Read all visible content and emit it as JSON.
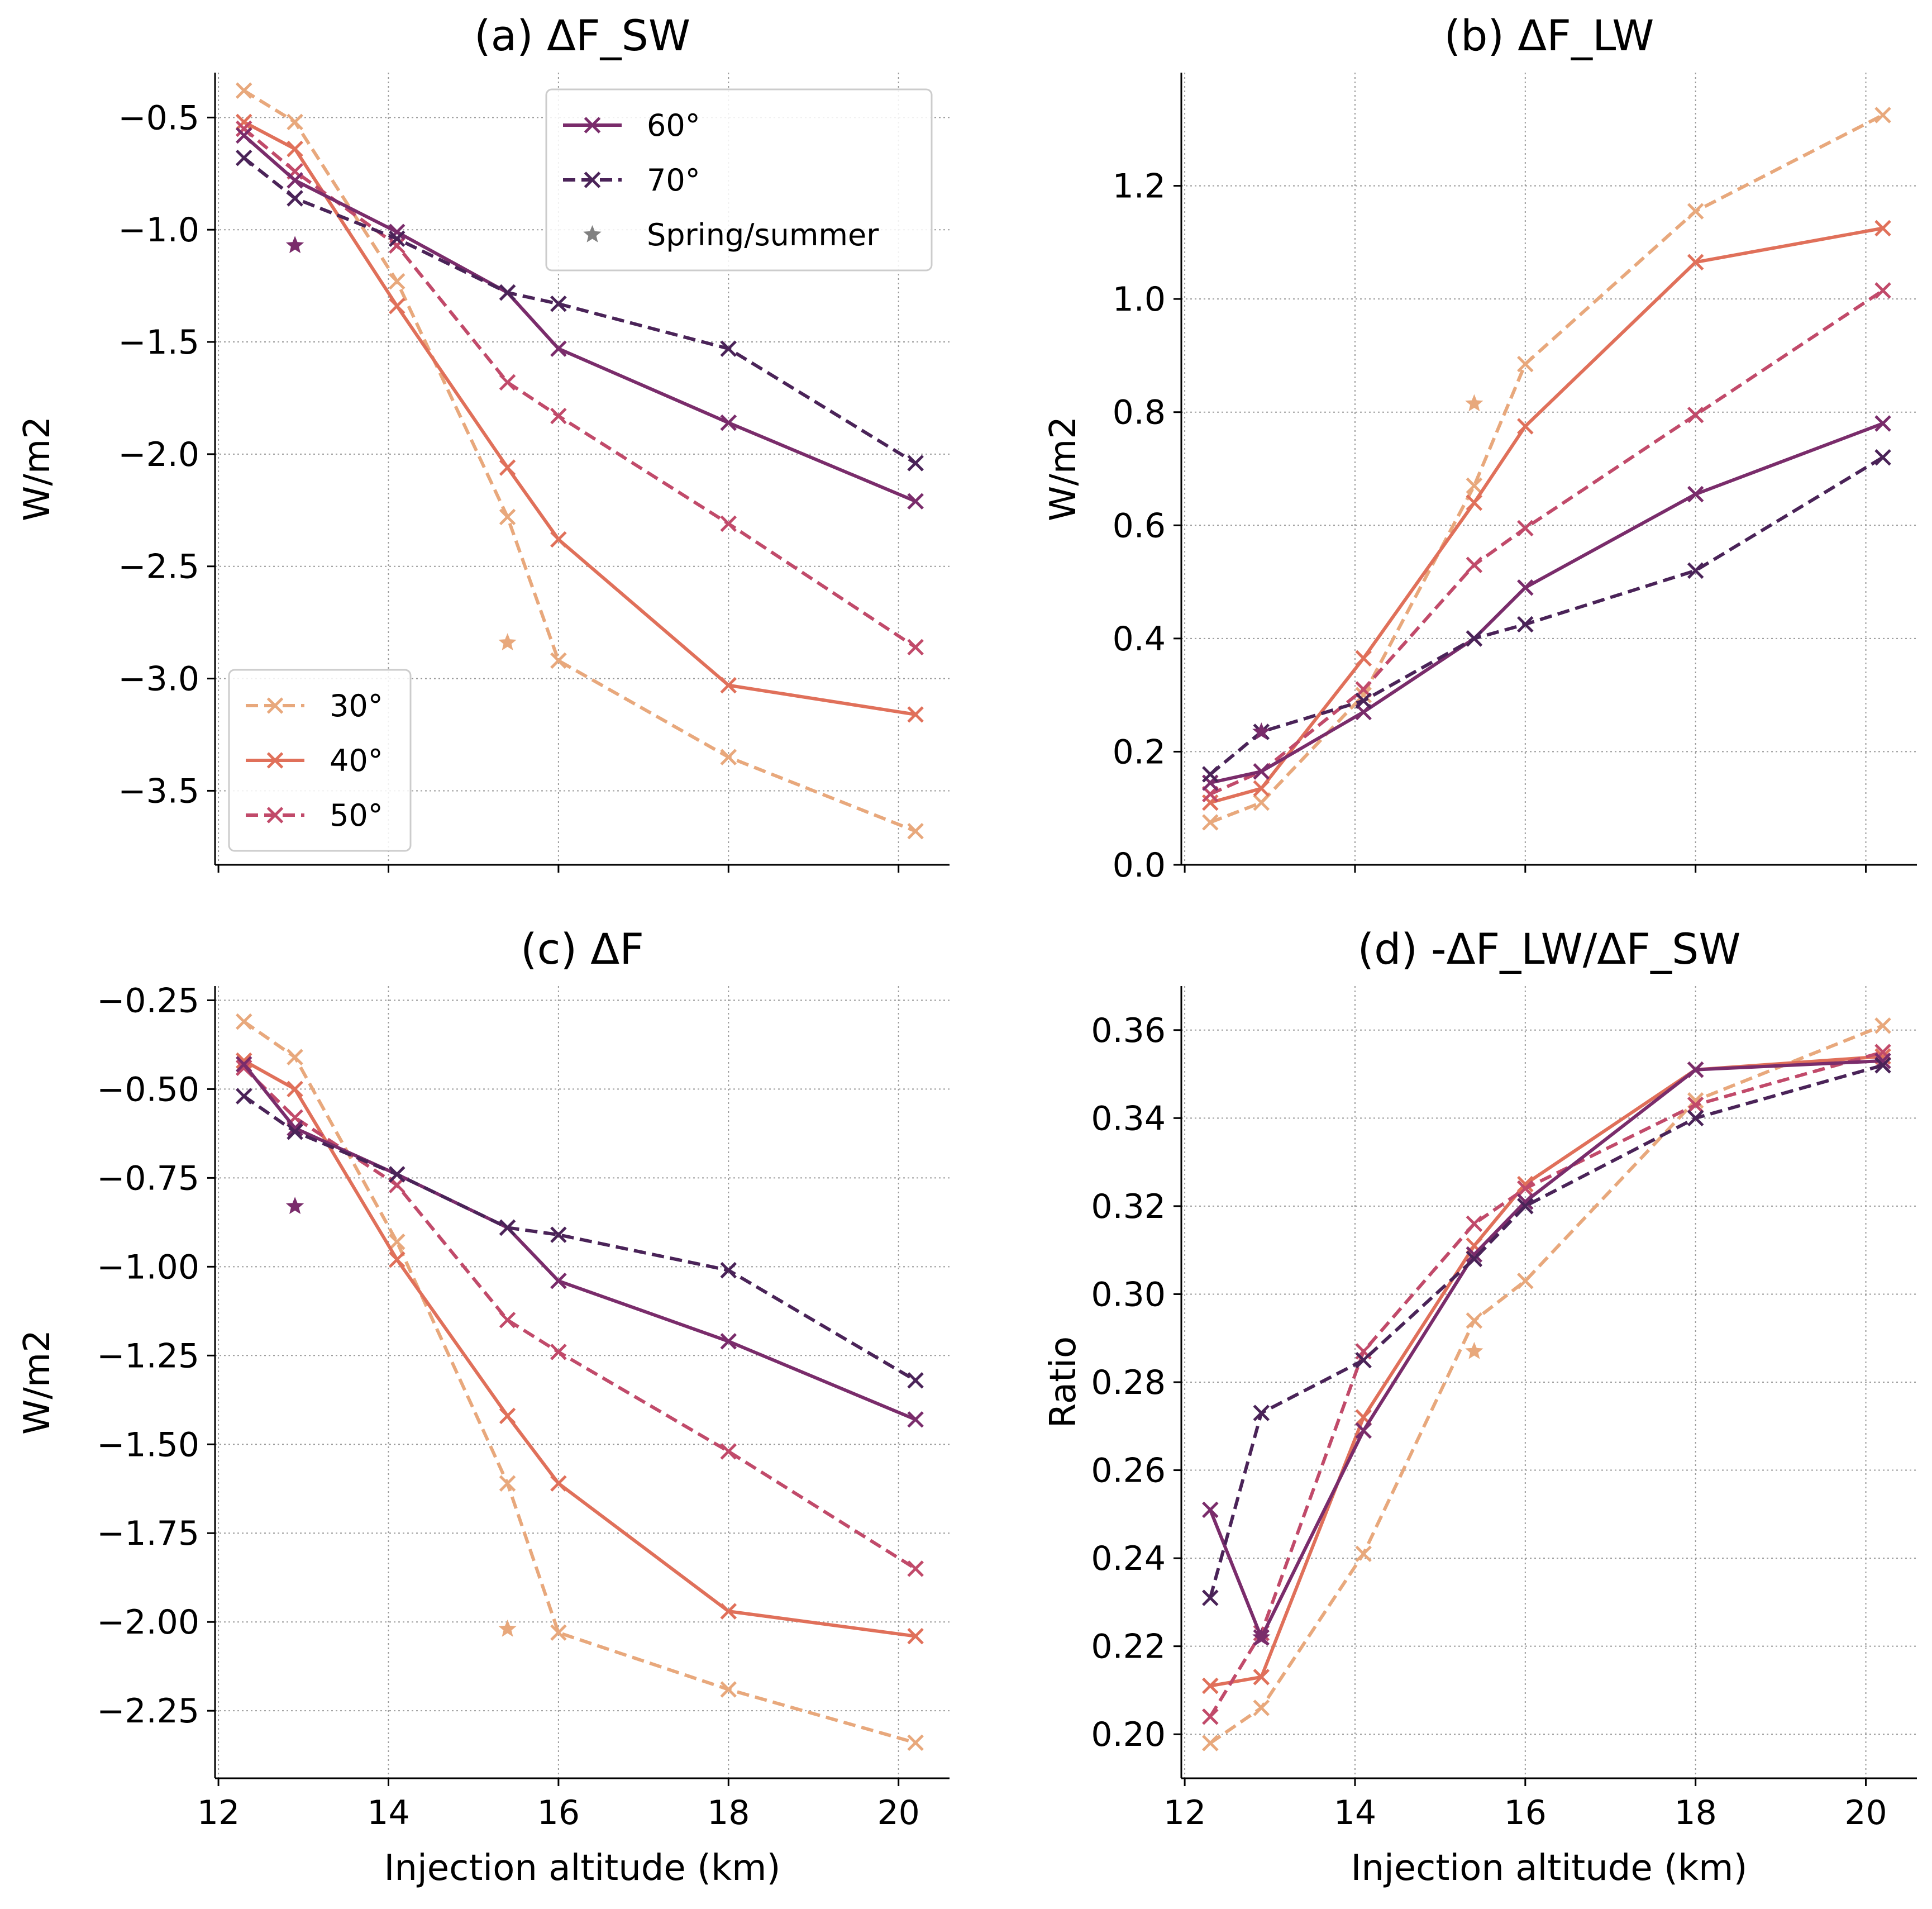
{
  "figure": {
    "title": ""
  },
  "colors": {
    "30": "#E8A87C",
    "40": "#E0705A",
    "50": "#C14A6A",
    "60": "#7A2C6B",
    "70": "#4A2358",
    "star_legend": "#808080"
  },
  "legend_labels": {
    "s30": "30°",
    "s40": "40°",
    "s50": "50°",
    "s60": "60°",
    "s70": "70°",
    "star": "Spring/summer"
  },
  "chart_data": [
    {
      "id": "a",
      "type": "line",
      "title": "(a) ΔF_SW",
      "xlabel": "",
      "ylabel": "W/m2",
      "xlim": [
        11.96,
        20.6
      ],
      "ylim": [
        -3.83,
        -0.3
      ],
      "xticks": [
        12,
        14,
        16,
        18,
        20
      ],
      "yticks": [
        -0.5,
        -1.0,
        -1.5,
        -2.0,
        -2.5,
        -3.0,
        -3.5
      ],
      "xtick_labels": [
        "",
        "",
        "",
        "",
        ""
      ],
      "ytick_labels": [
        "−0.5",
        "−1.0",
        "−1.5",
        "−2.0",
        "−2.5",
        "−3.0",
        "−3.5"
      ],
      "x": [
        12.3,
        12.9,
        14.1,
        15.4,
        16.0,
        18.0,
        20.2
      ],
      "series": [
        {
          "name": "30°",
          "key": "30",
          "dash": true,
          "values": [
            -0.38,
            -0.52,
            -1.23,
            -2.28,
            -2.92,
            -3.35,
            -3.68
          ]
        },
        {
          "name": "40°",
          "key": "40",
          "dash": false,
          "values": [
            -0.52,
            -0.64,
            -1.34,
            -2.06,
            -2.38,
            -3.03,
            -3.16
          ]
        },
        {
          "name": "50°",
          "key": "50",
          "dash": true,
          "values": [
            -0.55,
            -0.74,
            -1.07,
            -1.68,
            -1.83,
            -2.31,
            -2.86
          ]
        },
        {
          "name": "60°",
          "key": "60",
          "dash": false,
          "values": [
            -0.58,
            -0.78,
            -1.01,
            -1.28,
            -1.53,
            -1.86,
            -2.21
          ]
        },
        {
          "name": "70°",
          "key": "70",
          "dash": true,
          "values": [
            -0.68,
            -0.86,
            -1.04,
            -1.28,
            -1.33,
            -1.53,
            -2.04
          ]
        }
      ],
      "stars": [
        {
          "key": "60",
          "x": 12.9,
          "y": -1.07
        },
        {
          "key": "30",
          "x": 15.4,
          "y": -2.84
        }
      ],
      "legends": [
        {
          "position": "upper-right",
          "entries": [
            "s60",
            "s70",
            "star"
          ]
        },
        {
          "position": "lower-left",
          "entries": [
            "s30",
            "s40",
            "s50"
          ]
        }
      ]
    },
    {
      "id": "b",
      "type": "line",
      "title": "(b) ΔF_LW",
      "xlabel": "",
      "ylabel": "W/m2",
      "xlim": [
        11.96,
        20.6
      ],
      "ylim": [
        0.0,
        1.4
      ],
      "xticks": [
        12,
        14,
        16,
        18,
        20
      ],
      "yticks": [
        0.0,
        0.2,
        0.4,
        0.6,
        0.8,
        1.0,
        1.2
      ],
      "xtick_labels": [
        "",
        "",
        "",
        "",
        ""
      ],
      "ytick_labels": [
        "0.0",
        "0.2",
        "0.4",
        "0.6",
        "0.8",
        "1.0",
        "1.2"
      ],
      "x": [
        12.3,
        12.9,
        14.1,
        15.4,
        16.0,
        18.0,
        20.2
      ],
      "series": [
        {
          "name": "30°",
          "key": "30",
          "dash": true,
          "values": [
            0.075,
            0.11,
            0.3,
            0.67,
            0.885,
            1.155,
            1.325
          ]
        },
        {
          "name": "40°",
          "key": "40",
          "dash": false,
          "values": [
            0.11,
            0.135,
            0.365,
            0.64,
            0.775,
            1.065,
            1.125
          ]
        },
        {
          "name": "50°",
          "key": "50",
          "dash": true,
          "values": [
            0.125,
            0.165,
            0.31,
            0.53,
            0.595,
            0.795,
            1.015
          ]
        },
        {
          "name": "60°",
          "key": "60",
          "dash": false,
          "values": [
            0.145,
            0.165,
            0.27,
            0.4,
            0.49,
            0.655,
            0.78
          ]
        },
        {
          "name": "70°",
          "key": "70",
          "dash": true,
          "values": [
            0.16,
            0.235,
            0.29,
            0.4,
            0.425,
            0.52,
            0.72
          ]
        }
      ],
      "stars": [
        {
          "key": "60",
          "x": 12.9,
          "y": 0.235
        },
        {
          "key": "30",
          "x": 15.4,
          "y": 0.815
        }
      ],
      "legends": []
    },
    {
      "id": "c",
      "type": "line",
      "title": "(c) ΔF",
      "xlabel": "Injection altitude (km)",
      "ylabel": "W/m2",
      "xlim": [
        11.96,
        20.6
      ],
      "ylim": [
        -2.44,
        -0.21
      ],
      "xticks": [
        12,
        14,
        16,
        18,
        20
      ],
      "yticks": [
        -0.25,
        -0.5,
        -0.75,
        -1.0,
        -1.25,
        -1.5,
        -1.75,
        -2.0,
        -2.25
      ],
      "xtick_labels": [
        "12",
        "14",
        "16",
        "18",
        "20"
      ],
      "ytick_labels": [
        "−0.25",
        "−0.50",
        "−0.75",
        "−1.00",
        "−1.25",
        "−1.50",
        "−1.75",
        "−2.00",
        "−2.25"
      ],
      "x": [
        12.3,
        12.9,
        14.1,
        15.4,
        16.0,
        18.0,
        20.2
      ],
      "series": [
        {
          "name": "30°",
          "key": "30",
          "dash": true,
          "values": [
            -0.31,
            -0.41,
            -0.93,
            -1.61,
            -2.03,
            -2.19,
            -2.34
          ]
        },
        {
          "name": "40°",
          "key": "40",
          "dash": false,
          "values": [
            -0.42,
            -0.5,
            -0.98,
            -1.42,
            -1.61,
            -1.97,
            -2.04
          ]
        },
        {
          "name": "50°",
          "key": "50",
          "dash": true,
          "values": [
            -0.44,
            -0.58,
            -0.77,
            -1.15,
            -1.24,
            -1.52,
            -1.85
          ]
        },
        {
          "name": "60°",
          "key": "60",
          "dash": false,
          "values": [
            -0.43,
            -0.61,
            -0.74,
            -0.89,
            -1.04,
            -1.21,
            -1.43
          ]
        },
        {
          "name": "70°",
          "key": "70",
          "dash": true,
          "values": [
            -0.52,
            -0.62,
            -0.74,
            -0.89,
            -0.91,
            -1.01,
            -1.32
          ]
        }
      ],
      "stars": [
        {
          "key": "60",
          "x": 12.9,
          "y": -0.83
        },
        {
          "key": "30",
          "x": 15.4,
          "y": -2.02
        }
      ],
      "legends": []
    },
    {
      "id": "d",
      "type": "line",
      "title": "(d) -ΔF_LW/ΔF_SW",
      "xlabel": "Injection altitude (km)",
      "ylabel": "Ratio",
      "xlim": [
        11.96,
        20.6
      ],
      "ylim": [
        0.19,
        0.37
      ],
      "xticks": [
        12,
        14,
        16,
        18,
        20
      ],
      "yticks": [
        0.2,
        0.22,
        0.24,
        0.26,
        0.28,
        0.3,
        0.32,
        0.34,
        0.36
      ],
      "xtick_labels": [
        "12",
        "14",
        "16",
        "18",
        "20"
      ],
      "ytick_labels": [
        "0.20",
        "0.22",
        "0.24",
        "0.26",
        "0.28",
        "0.30",
        "0.32",
        "0.34",
        "0.36"
      ],
      "x": [
        12.3,
        12.9,
        14.1,
        15.4,
        16.0,
        18.0,
        20.2
      ],
      "series": [
        {
          "name": "30°",
          "key": "30",
          "dash": true,
          "values": [
            0.198,
            0.206,
            0.241,
            0.294,
            0.303,
            0.344,
            0.361
          ]
        },
        {
          "name": "40°",
          "key": "40",
          "dash": false,
          "values": [
            0.211,
            0.213,
            0.272,
            0.311,
            0.325,
            0.351,
            0.354
          ]
        },
        {
          "name": "50°",
          "key": "50",
          "dash": true,
          "values": [
            0.204,
            0.223,
            0.287,
            0.316,
            0.324,
            0.343,
            0.355
          ]
        },
        {
          "name": "60°",
          "key": "60",
          "dash": false,
          "values": [
            0.251,
            0.222,
            0.269,
            0.309,
            0.321,
            0.351,
            0.353
          ]
        },
        {
          "name": "70°",
          "key": "70",
          "dash": true,
          "values": [
            0.231,
            0.273,
            0.285,
            0.308,
            0.32,
            0.34,
            0.352
          ]
        }
      ],
      "stars": [
        {
          "key": "60",
          "x": 12.9,
          "y": 0.222
        },
        {
          "key": "30",
          "x": 15.4,
          "y": 0.287
        }
      ],
      "legends": []
    }
  ]
}
